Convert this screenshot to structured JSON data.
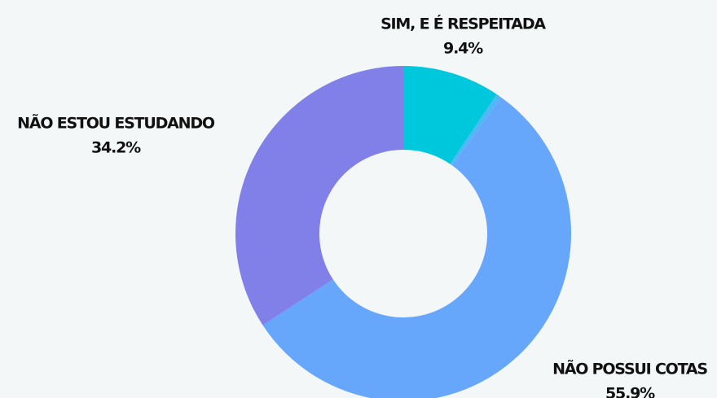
{
  "chart_data": {
    "type": "donut",
    "categories": [
      "SIM, E É RESPEITADA",
      null,
      "NÃO POSSUI COTAS",
      "NÃO ESTOU ESTUDANDO"
    ],
    "values": [
      9.4,
      0.5,
      55.9,
      34.2
    ],
    "value_labels": [
      "9.4%",
      null,
      "55.9%",
      "34.2%"
    ],
    "colors": [
      "#00c8dc",
      "#4fb8f5",
      "#66a6fb",
      "#8080e8"
    ]
  }
}
